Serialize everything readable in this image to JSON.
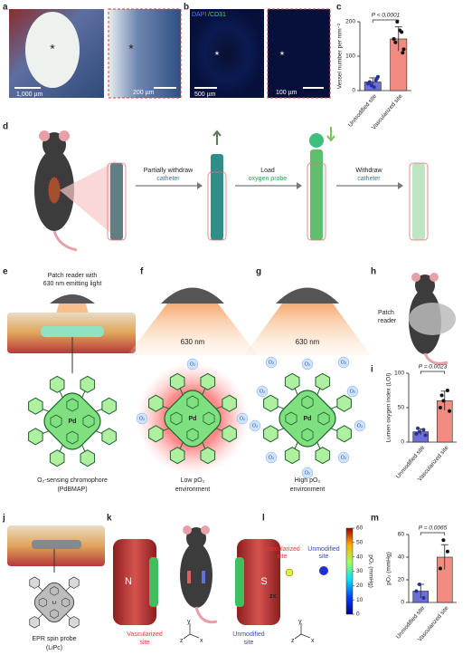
{
  "panel_labels": [
    "a",
    "b",
    "c",
    "d",
    "e",
    "f",
    "g",
    "h",
    "i",
    "j",
    "k",
    "l",
    "m"
  ],
  "a": {
    "marker": "*",
    "scale_bars": [
      "1,000 µm",
      "200 µm"
    ]
  },
  "b": {
    "stain": [
      "DAPI",
      "/CD31"
    ],
    "marker": "*",
    "scale_bars": [
      "500 µm",
      "100 µm"
    ]
  },
  "d": {
    "steps": [
      [
        "Partially withdraw",
        "catheter"
      ],
      [
        "Load",
        "oxygen probe"
      ],
      [
        "Withdraw",
        "catheter"
      ]
    ]
  },
  "e": {
    "reader": [
      "Patch reader with",
      "630 nm emitting light"
    ],
    "metal": "Pd",
    "caption": [
      "O₂-sensing chromophore",
      "(PdBMAP)"
    ]
  },
  "f": {
    "light": "630 nm",
    "metal": "Pd",
    "o2": "O₂",
    "caption": [
      "Low pO₂",
      "environment"
    ]
  },
  "g": {
    "light": "630 nm",
    "metal": "Pd",
    "o2": "O₂",
    "caption": [
      "High pO₂",
      "environment"
    ]
  },
  "h": {
    "reader": [
      "Patch",
      "reader"
    ]
  },
  "j": {
    "metal": "Li",
    "caption": [
      "EPR spin probe",
      "(LiPc)"
    ]
  },
  "k": {
    "magnets": [
      "N",
      "S"
    ],
    "sites": [
      [
        "Vascularized",
        "site"
      ],
      [
        "Unmodified",
        "site"
      ]
    ],
    "axes": [
      "y",
      "z",
      "x"
    ]
  },
  "l": {
    "sites": [
      [
        "Vascularized",
        "site"
      ],
      [
        "Unmodified",
        "site"
      ]
    ],
    "plane": "zx",
    "axes": [
      "y",
      "z",
      "x"
    ]
  },
  "chart_data": [
    {
      "type": "bar",
      "ylabel": "Vessel number per mm⁻²",
      "categories": [
        "Unmodified site",
        "Vascularized site"
      ],
      "values": [
        25,
        150
      ],
      "errors": [
        12,
        35
      ],
      "points": [
        [
          20,
          30,
          15,
          40,
          25,
          10,
          35
        ],
        [
          150,
          170,
          200,
          120,
          140,
          175,
          110
        ]
      ],
      "colors": [
        "#6b6fd6",
        "#f28b82"
      ],
      "ylim": [
        0,
        200
      ],
      "yticks": [
        0,
        100,
        200
      ],
      "annotation": "P < 0.0001"
    },
    {
      "type": "bar",
      "ylabel": "Lumen oxygen index (LOI)",
      "categories": [
        "Unmodified site",
        "Vascularized site"
      ],
      "values": [
        15,
        60
      ],
      "errors": [
        4,
        14
      ],
      "points": [
        [
          12,
          18,
          15,
          10,
          20
        ],
        [
          50,
          75,
          60,
          45,
          68
        ]
      ],
      "colors": [
        "#6b6fd6",
        "#f28b82"
      ],
      "ylim": [
        0,
        100
      ],
      "yticks": [
        0,
        50,
        100
      ],
      "annotation": "P = 0.0023"
    },
    {
      "type": "bar",
      "ylabel": "pO₂ (mmHg)",
      "categories": [
        "Unmodified site",
        "Vascularized site"
      ],
      "values": [
        10,
        40
      ],
      "errors": [
        6,
        11
      ],
      "points": [
        [
          10,
          4,
          16
        ],
        [
          30,
          45,
          55
        ]
      ],
      "colors": [
        "#6b6fd6",
        "#f28b82"
      ],
      "ylim": [
        0,
        60
      ],
      "yticks": [
        0,
        20,
        40,
        60
      ],
      "annotation": "P = 0.0065"
    },
    {
      "type": "colorbar",
      "ylabel": "pO₂ (mmHg)",
      "ylim": [
        0,
        60
      ],
      "yticks": [
        0,
        10,
        20,
        30,
        40,
        50,
        60
      ]
    }
  ]
}
